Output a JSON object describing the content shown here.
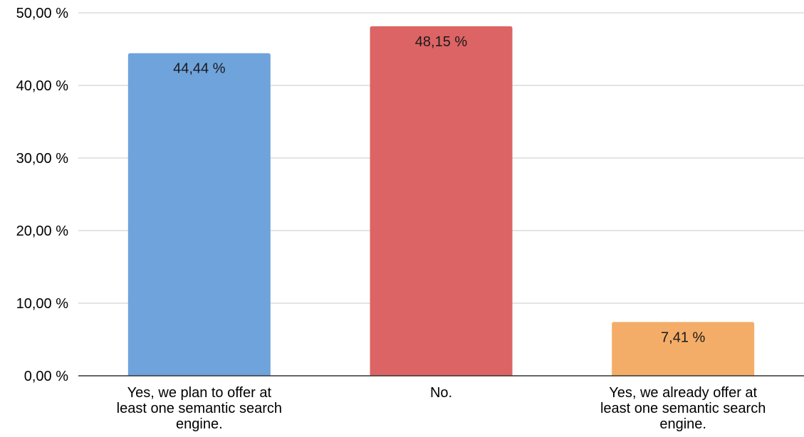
{
  "chart_data": {
    "type": "bar",
    "categories": [
      [
        "Yes, we plan to offer at",
        "least one semantic search",
        "engine."
      ],
      [
        "No."
      ],
      [
        "Yes, we already offer at",
        "least one semantic search",
        "engine."
      ]
    ],
    "values": [
      44.44,
      48.15,
      7.41
    ],
    "value_labels": [
      "44,44 %",
      "48,15 %",
      "7,41 %"
    ],
    "colors": [
      "#6fa3dc",
      "#dc6464",
      "#f4ad68"
    ],
    "ylim": [
      0,
      50
    ],
    "yticks": [
      0,
      10,
      20,
      30,
      40,
      50
    ],
    "ytick_labels": [
      "0,00 %",
      "10,00 %",
      "20,00 %",
      "30,00 %",
      "40,00 %",
      "50,00 %"
    ],
    "title": "",
    "xlabel": "",
    "ylabel": "",
    "grid": true,
    "legend": "none"
  }
}
